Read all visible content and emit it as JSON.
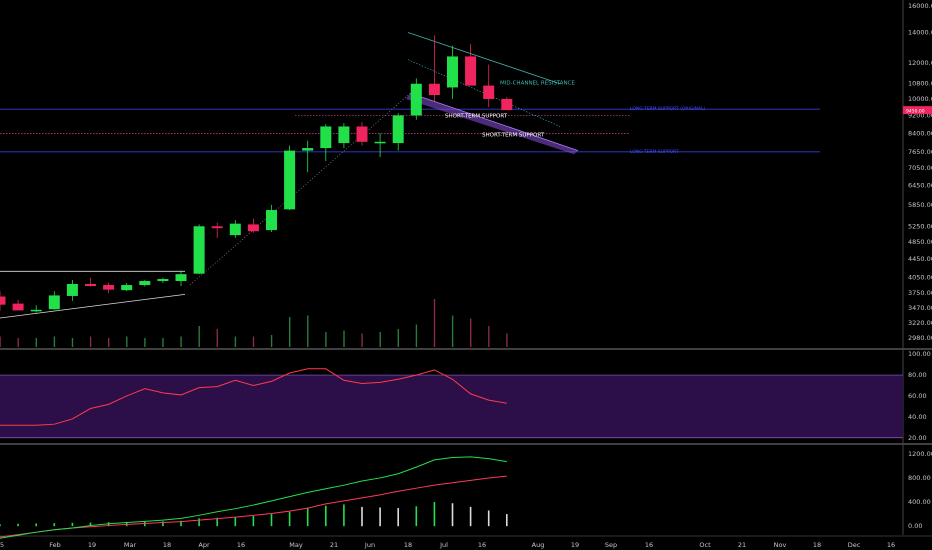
{
  "chart_data": [
    {
      "type": "candlestick",
      "panel": "price",
      "y_scale": "log",
      "ylim": [
        2850,
        16500
      ],
      "y_ticks": [
        16000,
        14000,
        12000,
        10800,
        10000,
        9200,
        8400,
        7650,
        7050,
        6450,
        5850,
        5250,
        4850,
        4450,
        4050,
        3750,
        3470,
        3220,
        2980
      ],
      "x_ticks": [
        "5",
        "Feb",
        "19",
        "Mar",
        "18",
        "Apr",
        "16",
        "May",
        "21",
        "Jun",
        "18",
        "Jul",
        "16",
        "Aug",
        "19",
        "Sep",
        "16",
        "Oct",
        "21",
        "Nov",
        "18",
        "Dec",
        "16"
      ],
      "price_label": "9450.00",
      "candles": [
        {
          "o": 3680,
          "h": 3780,
          "l": 3420,
          "c": 3530
        },
        {
          "o": 3550,
          "h": 3620,
          "l": 3430,
          "c": 3430
        },
        {
          "o": 3420,
          "h": 3520,
          "l": 3390,
          "c": 3440
        },
        {
          "o": 3450,
          "h": 3780,
          "l": 3440,
          "c": 3700
        },
        {
          "o": 3690,
          "h": 4000,
          "l": 3600,
          "c": 3920
        },
        {
          "o": 3920,
          "h": 4050,
          "l": 3870,
          "c": 3880
        },
        {
          "o": 3900,
          "h": 3950,
          "l": 3740,
          "c": 3810
        },
        {
          "o": 3800,
          "h": 3940,
          "l": 3780,
          "c": 3900
        },
        {
          "o": 3900,
          "h": 4000,
          "l": 3870,
          "c": 3980
        },
        {
          "o": 3980,
          "h": 4050,
          "l": 3940,
          "c": 4020
        },
        {
          "o": 3980,
          "h": 4200,
          "l": 3880,
          "c": 4120
        },
        {
          "o": 4130,
          "h": 5300,
          "l": 4120,
          "c": 5250
        },
        {
          "o": 5250,
          "h": 5350,
          "l": 4950,
          "c": 5200
        },
        {
          "o": 5020,
          "h": 5420,
          "l": 4950,
          "c": 5320
        },
        {
          "o": 5300,
          "h": 5450,
          "l": 5080,
          "c": 5120
        },
        {
          "o": 5150,
          "h": 5850,
          "l": 5100,
          "c": 5700
        },
        {
          "o": 5720,
          "h": 7900,
          "l": 5700,
          "c": 7700
        },
        {
          "o": 7700,
          "h": 8100,
          "l": 6900,
          "c": 7800
        },
        {
          "o": 7800,
          "h": 8800,
          "l": 7300,
          "c": 8700
        },
        {
          "o": 8000,
          "h": 8850,
          "l": 7800,
          "c": 8700
        },
        {
          "o": 8700,
          "h": 8900,
          "l": 7900,
          "c": 8050
        },
        {
          "o": 8000,
          "h": 8400,
          "l": 7450,
          "c": 8050
        },
        {
          "o": 8000,
          "h": 9300,
          "l": 7700,
          "c": 9200
        },
        {
          "o": 9200,
          "h": 11100,
          "l": 9000,
          "c": 10800
        },
        {
          "o": 10800,
          "h": 13800,
          "l": 9900,
          "c": 10200
        },
        {
          "o": 10600,
          "h": 13100,
          "l": 10000,
          "c": 12400
        },
        {
          "o": 12400,
          "h": 13200,
          "l": 10700,
          "c": 10700
        },
        {
          "o": 10700,
          "h": 11900,
          "l": 9600,
          "c": 10000
        },
        {
          "o": 10000,
          "h": 10100,
          "l": 9500,
          "c": 9450
        }
      ],
      "volumes": [
        0.35,
        0.3,
        0.3,
        0.35,
        0.3,
        0.35,
        0.3,
        0.35,
        0.3,
        0.3,
        0.35,
        0.7,
        0.6,
        0.35,
        0.35,
        0.4,
        1.0,
        1.05,
        0.5,
        0.55,
        0.45,
        0.5,
        0.6,
        0.75,
        1.6,
        1.05,
        0.95,
        0.7,
        0.45
      ],
      "annotations": [
        "MID-CHANNEL RESISTANCE",
        "SHORT-TERM SUPPORT",
        "SHORT-TERM SUPPORT",
        "LONG-TERM SUPPORT",
        "LONG-TERM SUPPORT (ORIGINAL)"
      ]
    },
    {
      "type": "line",
      "panel": "rsi",
      "ylim": [
        15,
        104
      ],
      "y_ticks": [
        100,
        80,
        60,
        40,
        20
      ],
      "band": [
        20,
        80
      ],
      "values": [
        32,
        32,
        32,
        33,
        38,
        48,
        52,
        60,
        67,
        63,
        61,
        68,
        69,
        75,
        70,
        74,
        82,
        86,
        86,
        75,
        72,
        73,
        76,
        80,
        85,
        76,
        62,
        56,
        53
      ]
    },
    {
      "type": "line",
      "panel": "macd",
      "ylim": [
        -130,
        1330
      ],
      "y_ticks": [
        1200,
        800,
        400,
        0
      ],
      "tick_labels": [
        "1200.00",
        "800.00",
        "400.00",
        "0.00"
      ],
      "macd": [
        -200,
        -150,
        -100,
        -60,
        -30,
        10,
        40,
        60,
        80,
        100,
        130,
        180,
        240,
        290,
        350,
        420,
        490,
        560,
        620,
        680,
        750,
        800,
        870,
        980,
        1100,
        1140,
        1150,
        1120,
        1070
      ],
      "signal": [
        -180,
        -140,
        -100,
        -60,
        -30,
        -10,
        10,
        30,
        45,
        60,
        75,
        100,
        125,
        150,
        180,
        210,
        250,
        300,
        370,
        420,
        470,
        520,
        580,
        630,
        680,
        720,
        760,
        800,
        830
      ],
      "histogram": [
        30,
        40,
        45,
        50,
        55,
        60,
        65,
        70,
        75,
        80,
        90,
        130,
        140,
        150,
        170,
        200,
        240,
        300,
        340,
        360,
        320,
        310,
        300,
        330,
        400,
        380,
        320,
        260,
        200
      ]
    }
  ]
}
